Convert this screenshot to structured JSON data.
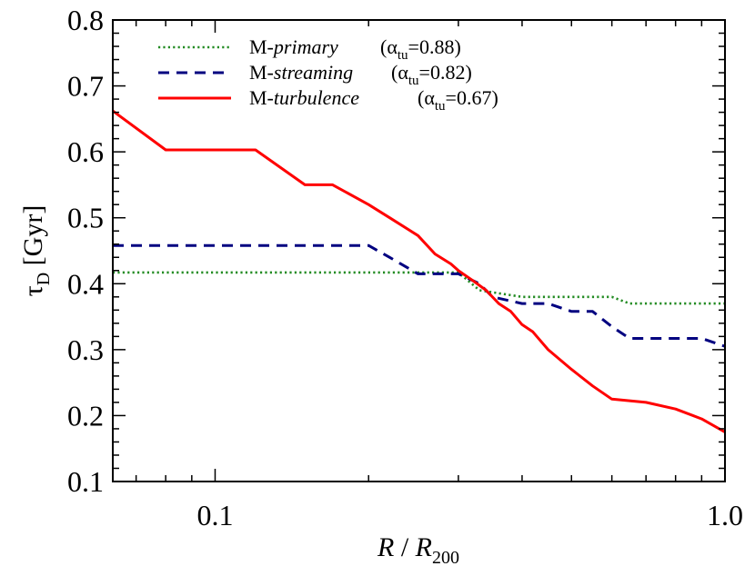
{
  "chart_data": {
    "type": "line",
    "xscale": "log",
    "xlim": [
      0.063,
      1.0
    ],
    "ylim": [
      0.1,
      0.8
    ],
    "grid": false,
    "legend_position": "top-left",
    "xlabel": {
      "main": "R",
      "sep": " / ",
      "var": "R",
      "sub": "200"
    },
    "ylabel": {
      "sym": "τ",
      "sub": "D",
      "unit": " [Gyr]"
    },
    "x_tick_labels": [
      {
        "value": 0.1,
        "label": "0.1"
      },
      {
        "value": 1.0,
        "label": "1.0"
      }
    ],
    "y_tick_labels": [
      {
        "value": 0.1,
        "label": "0.1"
      },
      {
        "value": 0.2,
        "label": "0.2"
      },
      {
        "value": 0.3,
        "label": "0.3"
      },
      {
        "value": 0.4,
        "label": "0.4"
      },
      {
        "value": 0.5,
        "label": "0.5"
      },
      {
        "value": 0.6,
        "label": "0.6"
      },
      {
        "value": 0.7,
        "label": "0.7"
      },
      {
        "value": 0.8,
        "label": "0.8"
      }
    ],
    "series": [
      {
        "key": "primary",
        "legend": {
          "prefix": "M-",
          "italic": "primary",
          "alpha_open": "(α",
          "alpha_sub": "tu",
          "alpha_close": "=0.88)"
        },
        "color": "#228B22",
        "style": "dotted",
        "x": [
          0.063,
          0.2,
          0.27,
          0.3,
          0.33,
          0.4,
          0.5,
          0.6,
          0.65,
          1.0
        ],
        "y": [
          0.417,
          0.417,
          0.417,
          0.417,
          0.39,
          0.38,
          0.38,
          0.38,
          0.37,
          0.37
        ]
      },
      {
        "key": "streaming",
        "legend": {
          "prefix": "M-",
          "italic": "streaming",
          "alpha_open": "(α",
          "alpha_sub": "tu",
          "alpha_close": "=0.82)"
        },
        "color": "#000080",
        "style": "dashed",
        "x": [
          0.063,
          0.2,
          0.22,
          0.25,
          0.27,
          0.3,
          0.33,
          0.35,
          0.4,
          0.45,
          0.5,
          0.55,
          0.6,
          0.65,
          0.9,
          1.0
        ],
        "y": [
          0.458,
          0.458,
          0.44,
          0.415,
          0.415,
          0.415,
          0.4,
          0.38,
          0.37,
          0.37,
          0.358,
          0.358,
          0.335,
          0.317,
          0.317,
          0.305
        ]
      },
      {
        "key": "turbulence",
        "legend": {
          "prefix": "M-",
          "italic": "turbulence",
          "alpha_open": "(α",
          "alpha_sub": "tu",
          "alpha_close": "=0.67)"
        },
        "color": "#ff0000",
        "style": "solid",
        "x": [
          0.063,
          0.08,
          0.12,
          0.15,
          0.17,
          0.2,
          0.22,
          0.25,
          0.27,
          0.29,
          0.3,
          0.32,
          0.34,
          0.36,
          0.38,
          0.4,
          0.42,
          0.45,
          0.5,
          0.55,
          0.6,
          0.7,
          0.8,
          0.9,
          1.0
        ],
        "y": [
          0.662,
          0.603,
          0.603,
          0.55,
          0.55,
          0.52,
          0.5,
          0.473,
          0.445,
          0.43,
          0.42,
          0.405,
          0.39,
          0.37,
          0.358,
          0.338,
          0.327,
          0.3,
          0.27,
          0.245,
          0.225,
          0.22,
          0.21,
          0.195,
          0.175
        ]
      }
    ]
  }
}
